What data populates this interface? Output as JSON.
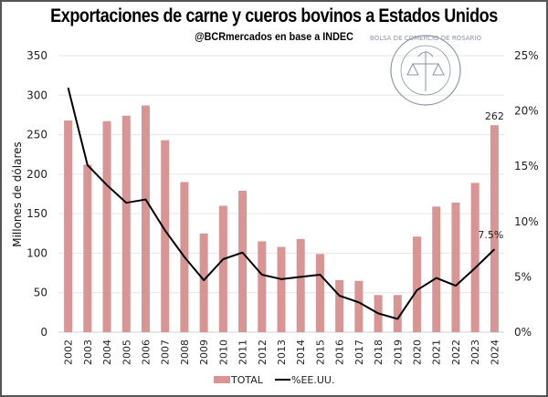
{
  "chart_data": {
    "type": "bar",
    "title": "Exportaciones de carne y cueros bovinos a Estados Unidos",
    "subtitle": "@BCRmercados en base a INDEC",
    "ylabel": "Millones de dólares",
    "ylim": [
      0,
      350
    ],
    "y_ticks": [
      "0",
      "50",
      "100",
      "150",
      "200",
      "250",
      "300",
      "350"
    ],
    "y2lim": [
      0,
      25
    ],
    "y2_ticks": [
      "0%",
      "5%",
      "10%",
      "15%",
      "20%",
      "25%"
    ],
    "grid": true,
    "legend_position": "bottom",
    "categories": [
      "2002",
      "2003",
      "2004",
      "2005",
      "2006",
      "2007",
      "2008",
      "2009",
      "2010",
      "2011",
      "2012",
      "2013",
      "2014",
      "2015",
      "2016",
      "2017",
      "2018",
      "2019",
      "2020",
      "2021",
      "2022",
      "2023",
      "2024"
    ],
    "series": [
      {
        "name": "TOTAL",
        "type": "bar",
        "axis": "left",
        "color": "#d99594",
        "values": [
          268,
          212,
          267,
          274,
          287,
          243,
          190,
          125,
          160,
          179,
          115,
          108,
          118,
          99,
          66,
          65,
          47,
          47,
          121,
          159,
          164,
          189,
          262
        ]
      },
      {
        "name": "%EE.UU.",
        "type": "line",
        "axis": "right",
        "color": "#000000",
        "values": [
          22.1,
          15.1,
          13.3,
          11.7,
          12.0,
          9.2,
          6.8,
          4.7,
          6.6,
          7.2,
          5.2,
          4.8,
          5.0,
          5.2,
          3.3,
          2.7,
          1.7,
          1.2,
          3.8,
          4.9,
          4.2,
          5.8,
          7.5
        ]
      }
    ],
    "annotations": {
      "bar_last": "262",
      "line_last": "7.5%"
    },
    "watermark": "BOLSA DE COMERCIO DE ROSARIO"
  }
}
